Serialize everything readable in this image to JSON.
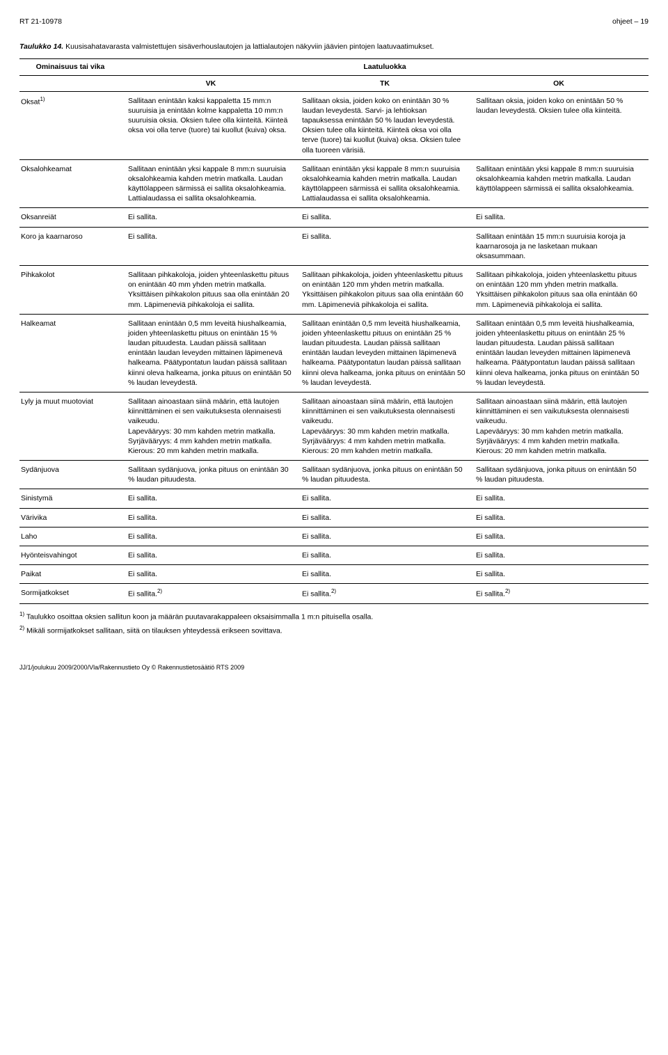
{
  "header": {
    "left": "RT 21-10978",
    "right": "ohjeet  –  19"
  },
  "caption": {
    "bold": "Taulukko 14.",
    "rest": " Kuusisahatavarasta valmistettujen sisäverhouslautojen ja lattialautojen näkyviin jäävien pintojen laatuvaatimukset."
  },
  "columns": {
    "c0": "Ominaisuus tai vika",
    "group": "Laatuluokka",
    "c1": "VK",
    "c2": "TK",
    "c3": "OK"
  },
  "rows": [
    {
      "label": "Oksat",
      "label_sup": "1)",
      "vk": "Sallitaan enintään kaksi kappaletta 15 mm:n suuruisia ja enintään kolme kappaletta 10 mm:n suuruisia oksia. Oksien tulee olla kiinteitä. Kiinteä oksa voi olla terve (tuore) tai kuollut (kuiva) oksa.",
      "tk": "Sallitaan oksia, joiden koko on enintään 30 % laudan leveydestä. Sarvi- ja lehtioksan tapauksessa enintään 50 % laudan leveydestä. Oksien tulee olla kiinteitä. Kiinteä oksa voi olla terve (tuore) tai kuollut (kuiva) oksa. Oksien tulee olla tuoreen värisiä.",
      "ok": "Sallitaan oksia, joiden koko on enintään 50 % laudan leveydestä. Oksien tulee olla kiinteitä."
    },
    {
      "label": "Oksalohkeamat",
      "vk": "Sallitaan enintään yksi kappale 8 mm:n suuruisia oksalohkeamia kahden metrin matkalla. Laudan käyttölappeen särmissä ei sallita oksalohkeamia. Lattialaudassa ei sallita oksalohkeamia.",
      "tk": "Sallitaan enintään yksi kappale 8 mm:n suuruisia oksalohkeamia kahden metrin matkalla. Laudan käyttölappeen särmissä ei sallita oksalohkeamia. Lattialaudassa ei sallita oksalohkeamia.",
      "ok": "Sallitaan enintään yksi kappale 8 mm:n suuruisia oksalohkeamia kahden metrin matkalla. Laudan käyttölappeen särmissä ei sallita oksalohkeamia."
    },
    {
      "label": "Oksanreiät",
      "vk": "Ei sallita.",
      "tk": "Ei sallita.",
      "ok": "Ei sallita."
    },
    {
      "label": "Koro ja kaarnaroso",
      "vk": "Ei sallita.",
      "tk": "Ei sallita.",
      "ok": "Sallitaan enintään 15 mm:n suuruisia koroja ja kaarnarosoja ja ne lasketaan mukaan oksasummaan."
    },
    {
      "label": "Pihkakolot",
      "vk": "Sallitaan pihkakoloja, joiden yhteenlaskettu pituus on enintään 40 mm yhden metrin matkalla. Yksittäisen pihkakolon pituus saa olla enintään 20 mm. Läpimeneviä pihkakoloja ei sallita.",
      "tk": "Sallitaan pihkakoloja, joiden yhteenlaskettu pituus on enintään 120 mm yhden metrin matkalla. Yksittäisen pihkakolon pituus saa olla enintään 60 mm. Läpimeneviä pihkakoloja ei sallita.",
      "ok": "Sallitaan pihkakoloja, joiden yhteenlaskettu pituus on enintään 120 mm yhden metrin matkalla. Yksittäisen pihkakolon pituus saa olla enintään 60 mm. Läpimeneviä pihkakoloja ei sallita."
    },
    {
      "label": "Halkeamat",
      "vk": "Sallitaan enintään 0,5 mm leveitä hiushalkeamia, joiden yhteenlaskettu pituus on enintään 15 % laudan pituudesta. Laudan päissä sallitaan enintään laudan leveyden mittainen läpimenevä halkeama. Päätypontatun laudan päissä sallitaan kiinni oleva halkeama, jonka pituus on enintään 50 % laudan leveydestä.",
      "tk": "Sallitaan enintään 0,5 mm leveitä hiushalkeamia, joiden yhteenlaskettu pituus on enintään 25 % laudan pituudesta. Laudan päissä sallitaan enintään laudan leveyden mittainen läpimenevä halkeama. Päätypontatun laudan päissä sallitaan kiinni oleva halkeama, jonka pituus on enintään 50 % laudan leveydestä.",
      "ok": "Sallitaan enintään 0,5 mm leveitä hiushalkeamia, joiden yhteenlaskettu pituus on enintään 25 % laudan pituudesta. Laudan päissä sallitaan enintään laudan leveyden mittainen läpimenevä halkeama. Päätypontatun laudan päissä sallitaan kiinni oleva halkeama, jonka pituus on enintään 50 % laudan leveydestä."
    },
    {
      "label": "Lyly ja muut muotoviat",
      "vk": "Sallitaan ainoastaan siinä määrin, että lautojen kiinnittäminen ei sen vaikutuksesta olennaisesti vaikeudu.\nLapevääryys: 30 mm kahden metrin matkalla.\nSyrjävääryys: 4 mm kahden metrin matkalla.\nKierous: 20 mm kahden metrin matkalla.",
      "tk": "Sallitaan ainoastaan siinä määrin, että lautojen kiinnittäminen ei sen vaikutuksesta olennaisesti vaikeudu.\nLapevääryys: 30 mm kahden metrin matkalla.\nSyrjävääryys: 4 mm kahden metrin matkalla.\nKierous: 20 mm kahden metrin matkalla.",
      "ok": "Sallitaan ainoastaan siinä määrin, että lautojen kiinnittäminen ei sen vaikutuksesta olennaisesti vaikeudu.\nLapevääryys: 30 mm kahden metrin matkalla.\nSyrjävääryys: 4 mm kahden metrin matkalla.\nKierous: 20 mm kahden metrin matkalla."
    },
    {
      "label": "Sydänjuova",
      "vk": "Sallitaan sydänjuova, jonka pituus on enintään 30 % laudan pituudesta.",
      "tk": "Sallitaan sydänjuova, jonka pituus on enintään 50 % laudan pituudesta.",
      "ok": "Sallitaan sydänjuova, jonka pituus on enintään 50 % laudan pituudesta."
    },
    {
      "label": "Sinistymä",
      "vk": "Ei sallita.",
      "tk": "Ei sallita.",
      "ok": "Ei sallita."
    },
    {
      "label": "Värivika",
      "vk": "Ei sallita.",
      "tk": "Ei sallita.",
      "ok": "Ei sallita."
    },
    {
      "label": "Laho",
      "vk": "Ei sallita.",
      "tk": "Ei sallita.",
      "ok": "Ei sallita."
    },
    {
      "label": "Hyönteisvahingot",
      "vk": "Ei sallita.",
      "tk": "Ei sallita.",
      "ok": "Ei sallita."
    },
    {
      "label": "Paikat",
      "vk": "Ei sallita.",
      "tk": "Ei sallita.",
      "ok": "Ei sallita."
    },
    {
      "label": "Sormijatkokset",
      "vk": "Ei sallita.",
      "vk_sup": "2)",
      "tk": "Ei sallita.",
      "tk_sup": "2)",
      "ok": "Ei sallita.",
      "ok_sup": "2)"
    }
  ],
  "footnotes": {
    "n1": "Taulukko osoittaa oksien sallitun koon ja määrän puutavarakappaleen oksaisimmalla 1 m:n pituisella osalla.",
    "n2": "Mikäli sormijatkokset sallitaan, siitä on tilauksen yhteydessä erikseen sovittava."
  },
  "footer": "JJ/1/joulukuu 2009/2000/Vla/Rakennustieto Oy   © Rakennustietosäätiö RTS 2009"
}
